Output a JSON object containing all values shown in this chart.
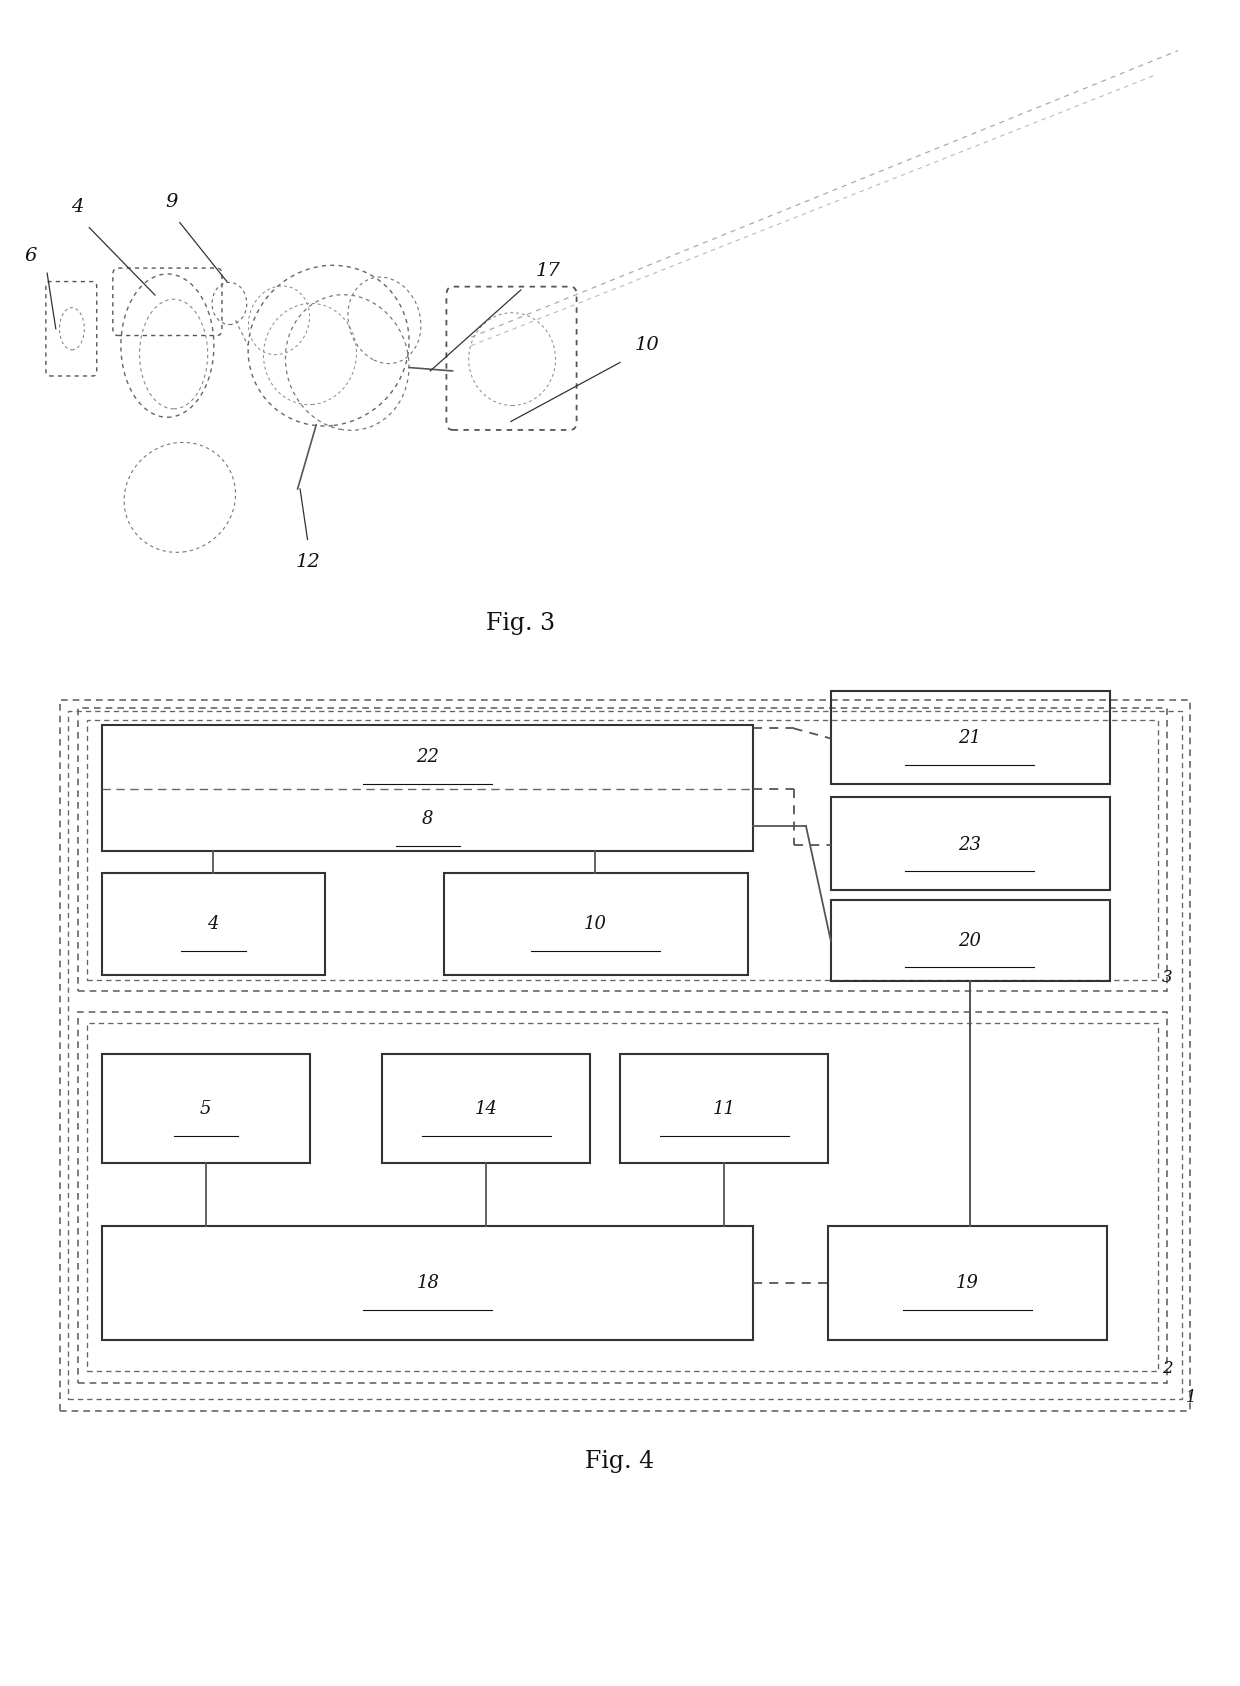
{
  "fig_width": 12.4,
  "fig_height": 16.86,
  "bg_color": "#ffffff",
  "fig3_label": "Fig. 3",
  "fig4_label": "Fig. 4"
}
